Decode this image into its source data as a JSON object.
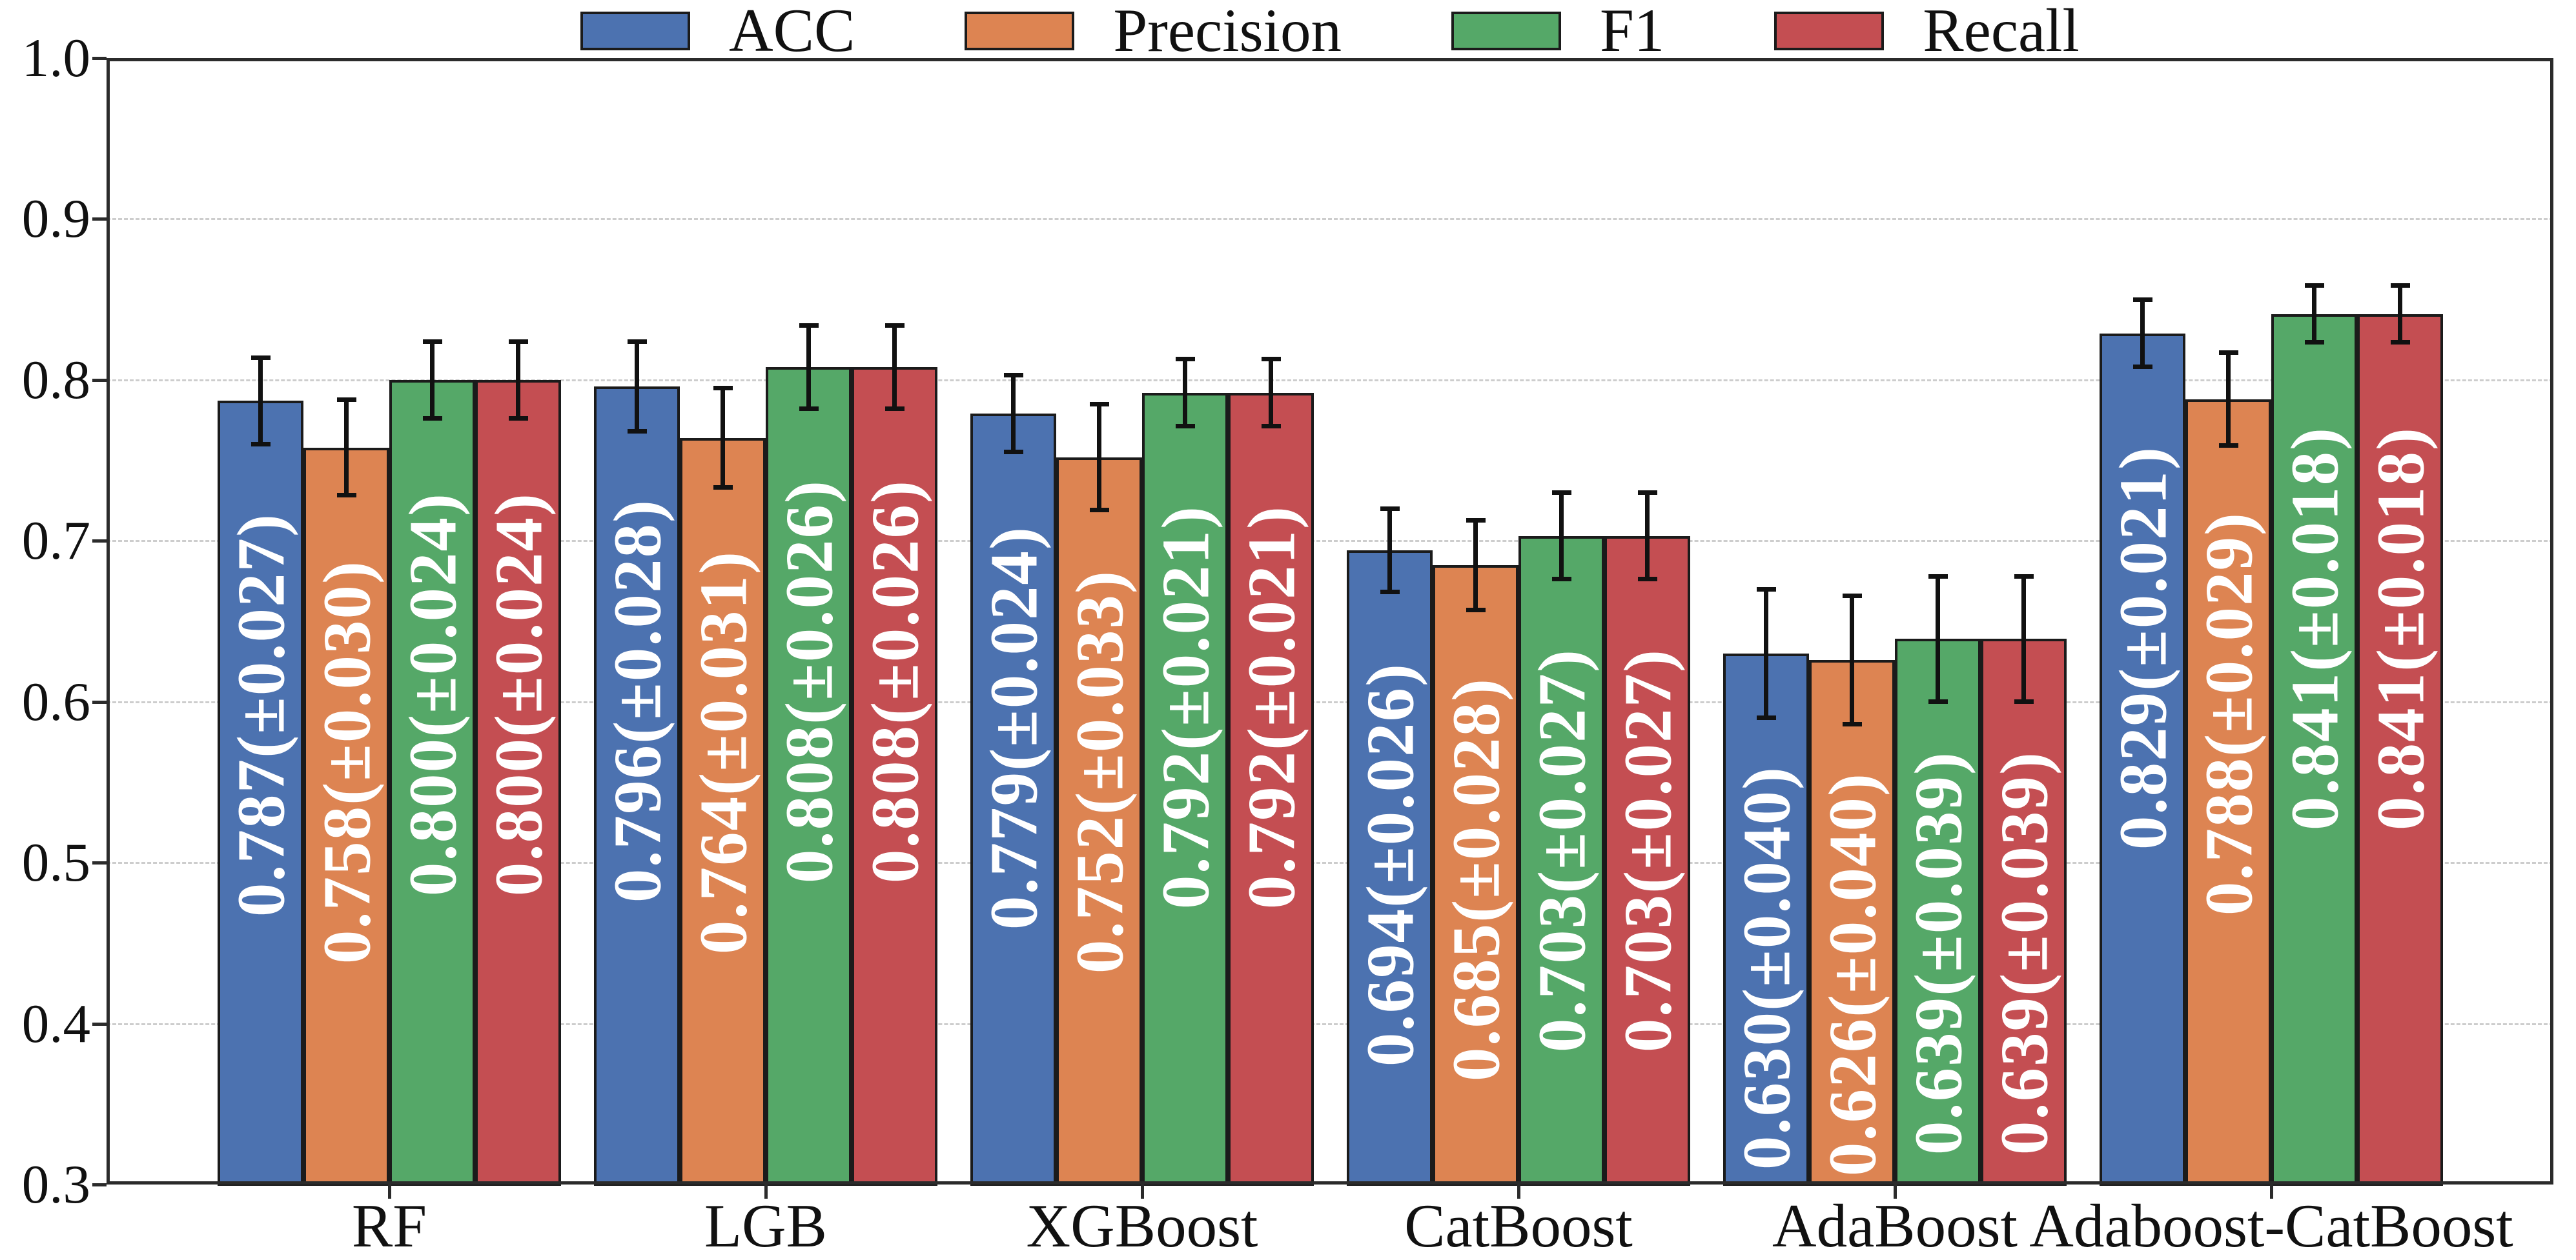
{
  "chart_data": {
    "type": "bar",
    "title": "",
    "categories": [
      "RF",
      "LGB",
      "XGBoost",
      "CatBoost",
      "AdaBoost",
      "Adaboost-CatBoost"
    ],
    "series": [
      {
        "name": "ACC",
        "color": "#4C72B0",
        "values": [
          0.787,
          0.796,
          0.779,
          0.694,
          0.63,
          0.829
        ],
        "errors": [
          0.027,
          0.028,
          0.024,
          0.026,
          0.04,
          0.021
        ],
        "bar_labels": [
          "0.787(±0.027)",
          "0.796(±0.028)",
          "0.779(±0.024)",
          "0.694(±0.026)",
          "0.630(±0.040)",
          "0.829(±0.021)"
        ]
      },
      {
        "name": "Precision",
        "color": "#DD8452",
        "values": [
          0.758,
          0.764,
          0.752,
          0.685,
          0.626,
          0.788
        ],
        "errors": [
          0.03,
          0.031,
          0.033,
          0.028,
          0.04,
          0.029
        ],
        "bar_labels": [
          "0.758(±0.030)",
          "0.764(±0.031)",
          "0.752(±0.033)",
          "0.685(±0.028)",
          "0.626(±0.040)",
          "0.788(±0.029)"
        ]
      },
      {
        "name": "F1",
        "color": "#55A868",
        "values": [
          0.8,
          0.808,
          0.792,
          0.703,
          0.639,
          0.841
        ],
        "errors": [
          0.024,
          0.026,
          0.021,
          0.027,
          0.039,
          0.018
        ],
        "bar_labels": [
          "0.800(±0.024)",
          "0.808(±0.026)",
          "0.792(±0.021)",
          "0.703(±0.027)",
          "0.639(±0.039)",
          "0.841(±0.018)"
        ]
      },
      {
        "name": "Recall",
        "color": "#C44E52",
        "values": [
          0.8,
          0.808,
          0.792,
          0.703,
          0.639,
          0.841
        ],
        "errors": [
          0.024,
          0.026,
          0.021,
          0.027,
          0.039,
          0.018
        ],
        "bar_labels": [
          "0.800(±0.024)",
          "0.808(±0.026)",
          "0.792(±0.021)",
          "0.703(±0.027)",
          "0.639(±0.039)",
          "0.841(±0.018)"
        ]
      }
    ],
    "ylim": [
      0.3,
      1.0
    ],
    "yticks": [
      1.0,
      0.9,
      0.8,
      0.7,
      0.6,
      0.5,
      0.4,
      0.3
    ],
    "ytick_labels": [
      "1.0",
      "0.9",
      "0.8",
      "0.7",
      "0.6",
      "0.5",
      "0.4",
      "0.3"
    ],
    "xlabel": "",
    "ylabel": "",
    "grid": "horizontal-dashed",
    "gridline_ticks": [
      0.9,
      0.8,
      0.7,
      0.6,
      0.5,
      0.4
    ],
    "legend_position": "top-center",
    "bar_label_color": "#ffffff",
    "error_bar_color": "#111111",
    "spine_color": "#2b2b2b"
  }
}
